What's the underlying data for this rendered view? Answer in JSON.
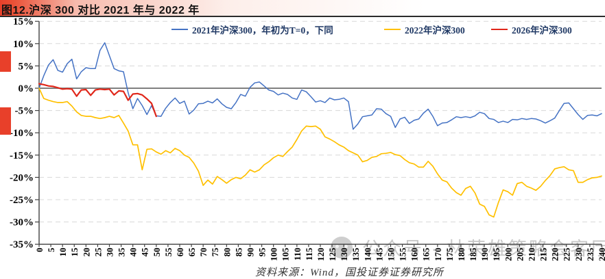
{
  "title": {
    "text": "图12.沪深 300 对比 2021 年与 2022 年"
  },
  "source": {
    "text": "资料来源：Wind，国投证券证券研究所"
  },
  "watermark": {
    "text": "公众号 · 林荣雄策略会客厅",
    "icon": "gray-badge-icon"
  },
  "colors": {
    "accent_red": "#e8402a",
    "series_2021": "#4472c4",
    "series_2022": "#ffc000",
    "series_2026": "#e02619",
    "gridline": "#d8d8d8",
    "zero_line": "#7f7f7f",
    "spine": "#404040",
    "axis_text": "#000000",
    "legend_text": "#1f3864",
    "watermark_gray": "#c8c8c8"
  },
  "chart_data": {
    "type": "line",
    "title": "沪深300对比2021年与2022年",
    "xlabel": "",
    "ylabel": "",
    "ylim": [
      -35,
      15
    ],
    "xlim": [
      0,
      240
    ],
    "grid": "horizontal-dashed",
    "zero_line": true,
    "legend_position": "top",
    "yticks": [
      15,
      10,
      5,
      0,
      -5,
      -10,
      -15,
      -20,
      -25,
      -30,
      -35
    ],
    "ytick_suffix": "%",
    "xticks": [
      0,
      5,
      10,
      15,
      20,
      25,
      30,
      35,
      40,
      45,
      50,
      55,
      60,
      65,
      70,
      75,
      80,
      85,
      90,
      95,
      100,
      105,
      110,
      115,
      120,
      125,
      130,
      135,
      140,
      145,
      150,
      155,
      160,
      165,
      170,
      175,
      180,
      185,
      190,
      195,
      200,
      205,
      210,
      215,
      220,
      225,
      230,
      235,
      240
    ],
    "series": [
      {
        "name": "2021年沪深300，年初为T=0，下同",
        "color": "#4472c4",
        "width": 1.5,
        "x": [
          0,
          2,
          4,
          6,
          8,
          10,
          12,
          14,
          16,
          18,
          20,
          22,
          24,
          26,
          28,
          30,
          32,
          34,
          36,
          38,
          40,
          42,
          44,
          46,
          48,
          50,
          52,
          54,
          56,
          58,
          60,
          62,
          64,
          66,
          68,
          70,
          72,
          74,
          76,
          78,
          80,
          82,
          84,
          86,
          88,
          90,
          92,
          94,
          96,
          98,
          100,
          102,
          104,
          106,
          108,
          110,
          112,
          114,
          116,
          118,
          120,
          122,
          124,
          126,
          128,
          130,
          132,
          134,
          136,
          138,
          140,
          142,
          144,
          146,
          148,
          150,
          152,
          154,
          156,
          158,
          160,
          162,
          164,
          166,
          168,
          170,
          172,
          174,
          176,
          178,
          180,
          182,
          184,
          186,
          188,
          190,
          192,
          194,
          196,
          198,
          200,
          202,
          204,
          206,
          208,
          210,
          212,
          214,
          216,
          218,
          220,
          222,
          224,
          226,
          228,
          230,
          232,
          234,
          236,
          238,
          240
        ],
        "values": [
          0.0,
          2.8,
          5.2,
          6.4,
          4.0,
          3.6,
          5.5,
          6.5,
          2.1,
          3.7,
          4.6,
          4.4,
          4.4,
          8.5,
          10.2,
          7.3,
          4.4,
          3.9,
          3.7,
          -1.0,
          -4.6,
          -2.3,
          -3.9,
          -5.9,
          -3.9,
          -6.2,
          -6.3,
          -4.5,
          -3.2,
          -2.2,
          -3.4,
          -2.9,
          -5.8,
          -4.9,
          -3.5,
          -3.4,
          -2.9,
          -3.3,
          -2.4,
          -3.5,
          -4.3,
          -4.6,
          -3.2,
          -1.4,
          -1.8,
          0.2,
          1.2,
          1.4,
          0.5,
          -0.4,
          -0.7,
          -1.5,
          -1.1,
          -1.4,
          -2.2,
          -2.5,
          -0.4,
          -0.8,
          -1.9,
          -3.1,
          -2.8,
          -3.2,
          -2.2,
          -2.6,
          -2.5,
          -2.2,
          -3.0,
          -9.2,
          -8.0,
          -6.4,
          -6.2,
          -6.0,
          -4.6,
          -4.7,
          -5.7,
          -6.3,
          -8.8,
          -6.9,
          -6.5,
          -7.9,
          -7.2,
          -6.9,
          -5.6,
          -4.7,
          -6.3,
          -8.4,
          -7.8,
          -7.7,
          -7.1,
          -6.4,
          -6.6,
          -6.4,
          -6.6,
          -6.2,
          -5.4,
          -5.7,
          -6.8,
          -7.0,
          -7.7,
          -7.4,
          -7.7,
          -7.0,
          -7.1,
          -6.8,
          -7.0,
          -6.8,
          -6.9,
          -7.3,
          -7.8,
          -7.3,
          -6.7,
          -5.0,
          -3.4,
          -3.3,
          -4.6,
          -5.9,
          -7.0,
          -6.1,
          -6.0,
          -6.2,
          -5.7
        ]
      },
      {
        "name": "2022年沪深300",
        "color": "#ffc000",
        "width": 1.7,
        "x": [
          0,
          2,
          4,
          6,
          8,
          10,
          12,
          14,
          16,
          18,
          20,
          22,
          24,
          26,
          28,
          30,
          32,
          34,
          36,
          38,
          40,
          42,
          44,
          46,
          48,
          50,
          52,
          54,
          56,
          58,
          60,
          62,
          64,
          66,
          68,
          70,
          72,
          74,
          76,
          78,
          80,
          82,
          84,
          86,
          88,
          90,
          92,
          94,
          96,
          98,
          100,
          102,
          104,
          106,
          108,
          110,
          112,
          114,
          116,
          118,
          120,
          122,
          124,
          126,
          128,
          130,
          132,
          134,
          136,
          138,
          140,
          142,
          144,
          146,
          148,
          150,
          152,
          154,
          156,
          158,
          160,
          162,
          164,
          166,
          168,
          170,
          172,
          174,
          176,
          178,
          180,
          182,
          184,
          186,
          188,
          190,
          192,
          194,
          196,
          198,
          200,
          202,
          204,
          206,
          208,
          210,
          212,
          214,
          216,
          218,
          220,
          222,
          224,
          226,
          228,
          230,
          232,
          234,
          236,
          238,
          240
        ],
        "values": [
          0.0,
          -2.3,
          -2.7,
          -3.0,
          -3.2,
          -3.2,
          -3.0,
          -4.0,
          -5.3,
          -6.1,
          -6.3,
          -6.3,
          -6.6,
          -6.8,
          -6.6,
          -6.3,
          -6.6,
          -6.1,
          -7.8,
          -9.6,
          -12.7,
          -12.7,
          -18.3,
          -13.7,
          -13.6,
          -14.3,
          -14.8,
          -14.0,
          -14.5,
          -13.5,
          -14.0,
          -15.0,
          -15.5,
          -16.8,
          -18.6,
          -21.8,
          -20.6,
          -21.5,
          -19.8,
          -20.5,
          -21.3,
          -20.5,
          -20.0,
          -20.3,
          -19.5,
          -18.3,
          -18.8,
          -18.3,
          -17.2,
          -16.5,
          -15.6,
          -15.0,
          -15.3,
          -14.2,
          -13.2,
          -11.5,
          -9.6,
          -8.5,
          -8.6,
          -8.5,
          -9.2,
          -10.9,
          -11.4,
          -12.0,
          -12.7,
          -13.2,
          -14.0,
          -14.5,
          -15.0,
          -16.5,
          -16.2,
          -15.5,
          -15.3,
          -14.7,
          -14.6,
          -14.4,
          -14.9,
          -15.1,
          -16.0,
          -16.7,
          -17.0,
          -17.7,
          -17.7,
          -16.4,
          -17.5,
          -19.2,
          -20.6,
          -21.0,
          -22.4,
          -23.4,
          -24.0,
          -22.5,
          -22.0,
          -23.5,
          -26.0,
          -26.5,
          -28.4,
          -28.9,
          -25.6,
          -22.8,
          -23.2,
          -24.0,
          -21.4,
          -21.1,
          -22.0,
          -22.4,
          -22.9,
          -22.0,
          -20.7,
          -19.6,
          -18.1,
          -17.8,
          -17.6,
          -18.3,
          -18.5,
          -21.1,
          -21.1,
          -20.5,
          -20.1,
          -20.0,
          -19.7
        ]
      },
      {
        "name": "2026年沪深300",
        "color": "#e02619",
        "width": 2.2,
        "x": [
          0,
          2,
          4,
          6,
          8,
          10,
          12,
          14,
          16,
          18,
          20,
          22,
          24,
          26,
          28,
          30,
          32,
          34,
          36,
          38,
          40,
          42,
          44,
          46,
          48,
          50
        ],
        "values": [
          1.0,
          0.8,
          0.5,
          0.4,
          0.1,
          -0.2,
          -0.1,
          -0.2,
          -1.8,
          -0.4,
          -0.3,
          -1.6,
          -0.4,
          -0.2,
          -0.3,
          -0.2,
          -1.5,
          -0.6,
          -0.7,
          -2.7,
          -1.3,
          -1.2,
          -1.5,
          -2.4,
          -3.4,
          -6.3
        ]
      }
    ]
  }
}
